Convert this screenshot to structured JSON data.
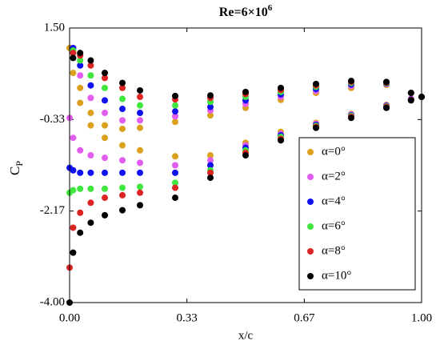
{
  "chart_data": {
    "type": "scatter",
    "title": "Re=6×10",
    "title_superscript": "6",
    "xlabel": "x/c",
    "ylabel": "C",
    "ylabel_subscript": "P",
    "x": [
      0,
      0.01,
      0.03,
      0.06,
      0.1,
      0.15,
      0.2,
      0.3,
      0.4,
      0.5,
      0.6,
      0.7,
      0.8,
      0.9,
      0.97,
      1.0,
      0.97,
      0.9,
      0.8,
      0.7,
      0.6,
      0.5,
      0.4,
      0.3,
      0.2,
      0.15,
      0.1,
      0.06,
      0.03,
      0.01
    ],
    "series": [
      {
        "name": "α=0°",
        "color": "#dba11c",
        "values": [
          1.1,
          0.6,
          0.0,
          -0.45,
          -0.7,
          -0.85,
          -0.95,
          -1.07,
          -1.05,
          -0.8,
          -0.58,
          -0.4,
          -0.22,
          -0.04,
          0.08,
          0.12,
          0.2,
          0.36,
          0.3,
          0.2,
          0.06,
          -0.1,
          -0.25,
          -0.38,
          -0.5,
          -0.52,
          -0.45,
          -0.2,
          0.3,
          1.0
        ]
      },
      {
        "name": "α=2°",
        "color": "#e35cf0",
        "values": [
          -0.3,
          -0.7,
          -0.95,
          -1.05,
          -1.1,
          -1.15,
          -1.2,
          -1.25,
          -1.15,
          -0.85,
          -0.62,
          -0.42,
          -0.23,
          -0.05,
          0.08,
          0.12,
          0.2,
          0.38,
          0.34,
          0.24,
          0.12,
          -0.02,
          -0.15,
          -0.27,
          -0.35,
          -0.35,
          -0.2,
          0.1,
          0.55,
          1.1
        ]
      },
      {
        "name": "α=4°",
        "color": "#1010f0",
        "values": [
          -1.3,
          -1.35,
          -1.4,
          -1.4,
          -1.4,
          -1.4,
          -1.4,
          -1.4,
          -1.25,
          -0.9,
          -0.65,
          -0.44,
          -0.25,
          -0.06,
          0.07,
          0.12,
          0.2,
          0.39,
          0.37,
          0.28,
          0.17,
          0.05,
          -0.08,
          -0.17,
          -0.2,
          -0.12,
          0.05,
          0.35,
          0.75,
          1.1
        ]
      },
      {
        "name": "α=6°",
        "color": "#3ee63e",
        "values": [
          -1.8,
          -1.75,
          -1.72,
          -1.72,
          -1.72,
          -1.7,
          -1.68,
          -1.6,
          -1.35,
          -0.95,
          -0.68,
          -0.46,
          -0.26,
          -0.07,
          0.06,
          0.12,
          0.2,
          0.4,
          0.4,
          0.32,
          0.22,
          0.12,
          0.02,
          -0.05,
          -0.05,
          0.08,
          0.3,
          0.55,
          0.85,
          1.05
        ]
      },
      {
        "name": "α=8°",
        "color": "#dc2424",
        "values": [
          -3.3,
          -2.5,
          -2.2,
          -2.0,
          -1.9,
          -1.85,
          -1.8,
          -1.7,
          -1.4,
          -1.0,
          -0.72,
          -0.48,
          -0.28,
          -0.08,
          0.06,
          0.12,
          0.2,
          0.41,
          0.42,
          0.35,
          0.26,
          0.18,
          0.1,
          0.07,
          0.12,
          0.3,
          0.5,
          0.75,
          0.95,
          1.0
        ]
      },
      {
        "name": "α=10°",
        "color": "#000000",
        "values": [
          -4.0,
          -3.0,
          -2.6,
          -2.4,
          -2.25,
          -2.15,
          -2.05,
          -1.9,
          -1.5,
          -1.05,
          -0.75,
          -0.5,
          -0.3,
          -0.1,
          0.05,
          0.12,
          0.2,
          0.42,
          0.44,
          0.38,
          0.3,
          0.22,
          0.15,
          0.14,
          0.25,
          0.4,
          0.6,
          0.85,
          1.0,
          0.9
        ]
      }
    ],
    "xlim": [
      0,
      1
    ],
    "xticks": [
      {
        "value": 0,
        "label": "0.00"
      },
      {
        "value": 0.3333,
        "label": "0.33"
      },
      {
        "value": 0.6667,
        "label": "0.67"
      },
      {
        "value": 1,
        "label": "1.00"
      }
    ],
    "ylim": [
      -4,
      1.5
    ],
    "yticks": [
      {
        "value": 1.5,
        "label": "1.50"
      },
      {
        "value": -0.3333,
        "label": "-0.33"
      },
      {
        "value": -2.1667,
        "label": "-2.17"
      },
      {
        "value": -4,
        "label": "-4.00"
      }
    ],
    "legend": "lower right"
  }
}
